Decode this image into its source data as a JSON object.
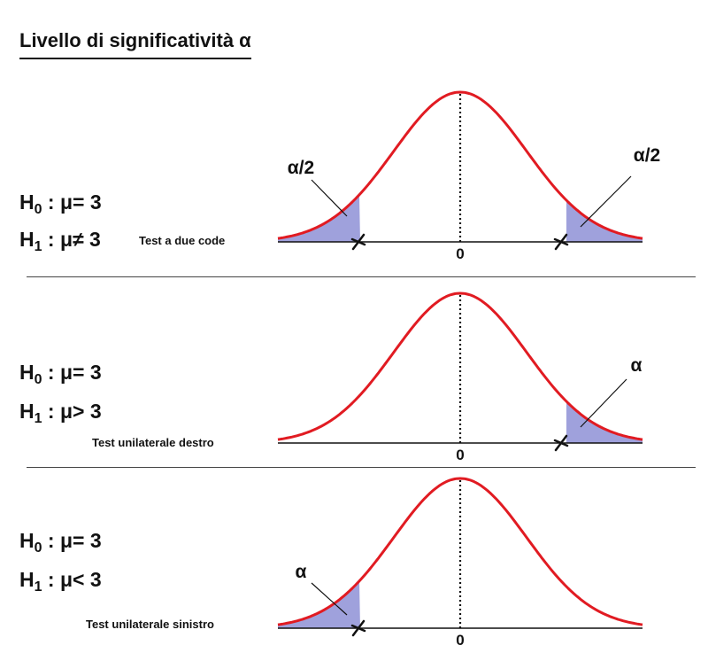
{
  "title": "Livello di significatività α",
  "panels": [
    {
      "h0": {
        "symbol": "H",
        "sub": "0",
        "text": " : μ=  3"
      },
      "h1": {
        "symbol": "H",
        "sub": "1",
        "text": " : μ≠ 3"
      },
      "test_label": "Test a due code",
      "zero_label": "0",
      "tails": "both",
      "left_alpha_label": "α/2",
      "right_alpha_label": "α/2"
    },
    {
      "h0": {
        "symbol": "H",
        "sub": "0",
        "text": " : μ= 3"
      },
      "h1": {
        "symbol": "H",
        "sub": "1",
        "text": " : μ> 3"
      },
      "test_label": "Test unilaterale destro",
      "zero_label": "0",
      "tails": "right",
      "right_alpha_label": "α"
    },
    {
      "h0": {
        "symbol": "H",
        "sub": "0",
        "text": " : μ= 3"
      },
      "h1": {
        "symbol": "H",
        "sub": "1",
        "text": " : μ< 3"
      },
      "test_label": "Test unilaterale sinistro",
      "zero_label": "0",
      "tails": "left",
      "left_alpha_label": "α"
    }
  ],
  "colors": {
    "curve": "#e11b22",
    "fill": "#9fa1dc",
    "axis": "#111111"
  }
}
